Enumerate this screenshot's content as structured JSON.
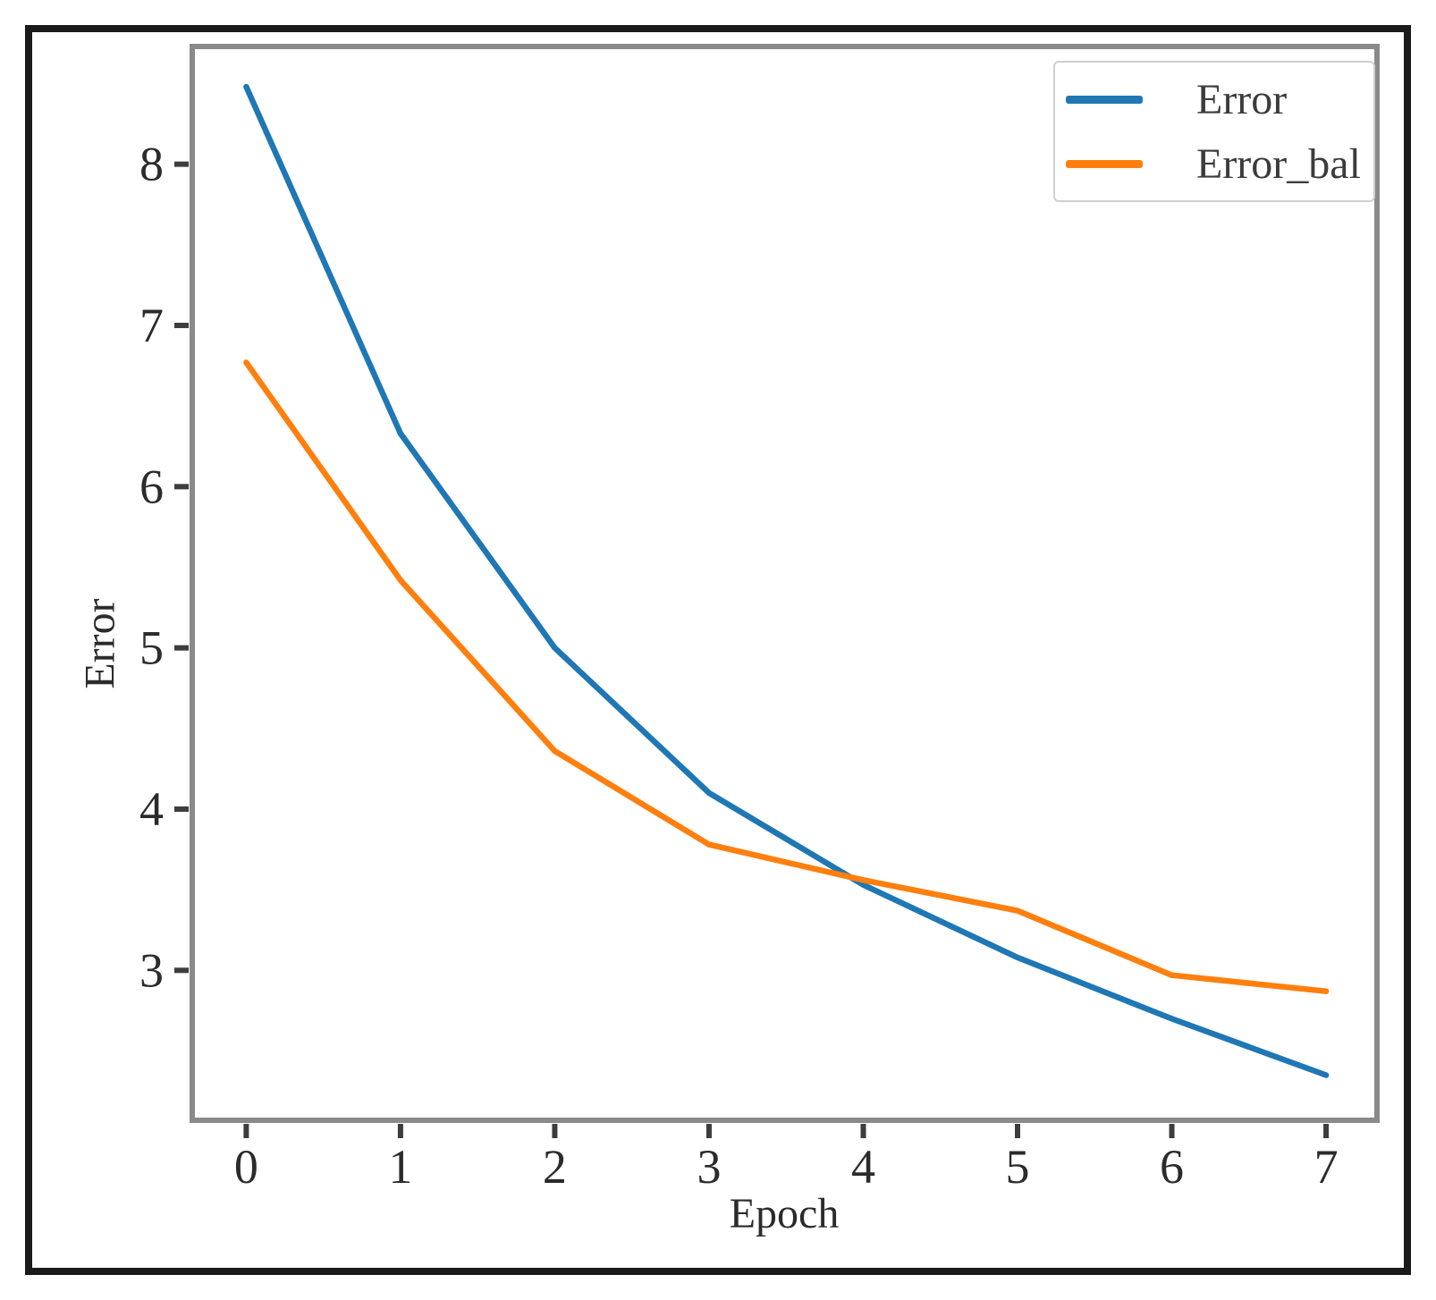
{
  "figure": {
    "background": "#ffffff",
    "frame_color": "#1a1a1a"
  },
  "style": {
    "spine_color": "#8a8a8a",
    "tick_color": "#3d3d3d",
    "text_color": "#2b2b2b"
  },
  "chart_data": {
    "type": "line",
    "title": "",
    "xlabel": "Epoch",
    "ylabel": "Error",
    "x": [
      0,
      1,
      2,
      3,
      4,
      5,
      6,
      7
    ],
    "series": [
      {
        "name": "Error",
        "color": "#1f77b4",
        "values": [
          8.48,
          6.33,
          5.0,
          4.1,
          3.53,
          3.08,
          2.7,
          2.35
        ]
      },
      {
        "name": "Error_bal",
        "color": "#ff7f0e",
        "values": [
          6.77,
          5.42,
          4.36,
          3.78,
          3.56,
          3.37,
          2.97,
          2.87
        ]
      }
    ],
    "x_ticks": [
      0,
      1,
      2,
      3,
      4,
      5,
      6,
      7
    ],
    "y_ticks": [
      3,
      4,
      5,
      6,
      7,
      8
    ],
    "xlim": [
      -0.35,
      7.33
    ],
    "ylim": [
      2.07,
      8.73
    ],
    "grid": false,
    "legend_position": "upper right"
  }
}
